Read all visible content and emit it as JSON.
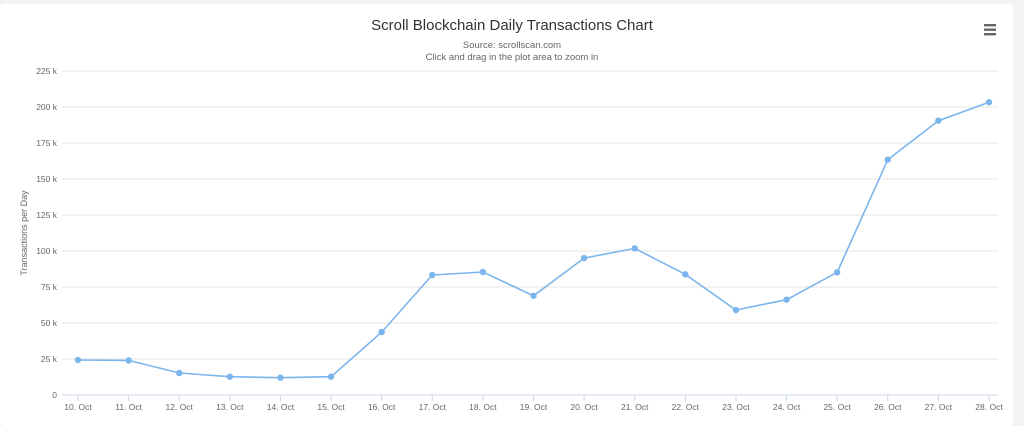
{
  "chart_data": {
    "type": "line",
    "title": "Scroll Blockchain Daily Transactions Chart",
    "subtitle": "Source: scrollscan.com",
    "hint": "Click and drag in the plot area to zoom in",
    "xlabel": "",
    "ylabel": "Transactions per Day",
    "ylim": [
      0,
      225000
    ],
    "yticks": [
      "0",
      "25 k",
      "50 k",
      "75 k",
      "100 k",
      "125 k",
      "150 k",
      "175 k",
      "200 k",
      "225 k"
    ],
    "grid": true,
    "legend": "none",
    "categories": [
      "10. Oct",
      "11. Oct",
      "12. Oct",
      "13. Oct",
      "14. Oct",
      "15. Oct",
      "16. Oct",
      "17. Oct",
      "18. Oct",
      "19. Oct",
      "20. Oct",
      "21. Oct",
      "22. Oct",
      "23. Oct",
      "24. Oct",
      "25. Oct",
      "26. Oct",
      "27. Oct",
      "28. Oct"
    ],
    "series": [
      {
        "name": "Transactions per Day",
        "color": "#7cb5ec",
        "values": [
          24300,
          24000,
          15300,
          12700,
          12000,
          12700,
          43700,
          83300,
          85400,
          68900,
          95100,
          101800,
          83800,
          59000,
          66200,
          85200,
          163400,
          190500,
          203300
        ]
      }
    ]
  },
  "header": {
    "menu_icon": "hamburger-menu-icon"
  }
}
